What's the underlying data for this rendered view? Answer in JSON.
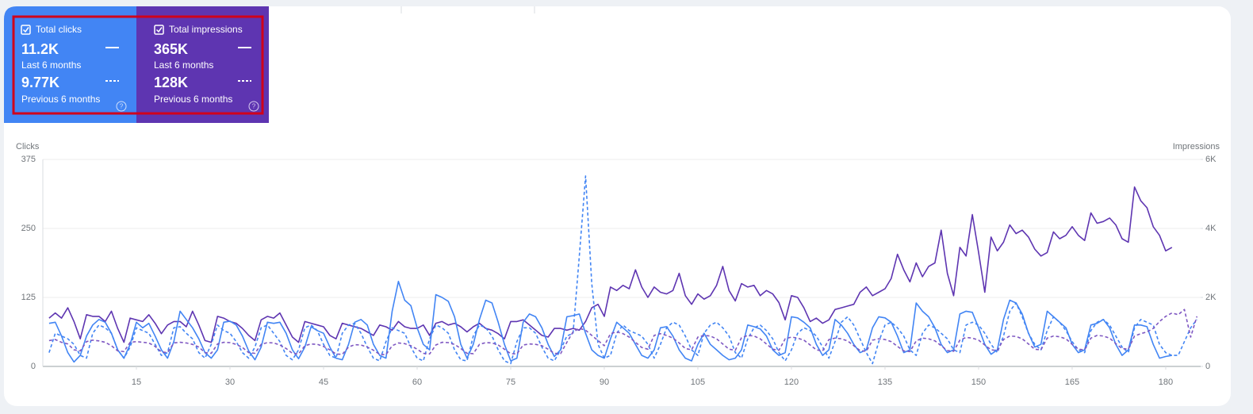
{
  "cards": [
    {
      "label": "Total clicks",
      "current": "11.2K",
      "current_period": "Last 6 months",
      "previous": "9.77K",
      "previous_period": "Previous 6 months"
    },
    {
      "label": "Total impressions",
      "current": "365K",
      "current_period": "Last 6 months",
      "previous": "128K",
      "previous_period": "Previous 6 months"
    }
  ],
  "chart_data": {
    "type": "line",
    "y_label": "Clicks",
    "y2_label": "Impressions",
    "x": [
      1,
      2,
      3,
      4,
      5,
      6,
      7,
      8,
      9,
      10,
      11,
      12,
      13,
      14,
      15,
      16,
      17,
      18,
      19,
      20,
      21,
      22,
      23,
      24,
      25,
      26,
      27,
      28,
      29,
      30,
      31,
      32,
      33,
      34,
      35,
      36,
      37,
      38,
      39,
      40,
      41,
      42,
      43,
      44,
      45,
      46,
      47,
      48,
      49,
      50,
      51,
      52,
      53,
      54,
      55,
      56,
      57,
      58,
      59,
      60,
      61,
      62,
      63,
      64,
      65,
      66,
      67,
      68,
      69,
      70,
      71,
      72,
      73,
      74,
      75,
      76,
      77,
      78,
      79,
      80,
      81,
      82,
      83,
      84,
      85,
      86,
      87,
      88,
      89,
      90,
      91,
      92,
      93,
      94,
      95,
      96,
      97,
      98,
      99,
      100,
      101,
      102,
      103,
      104,
      105,
      106,
      107,
      108,
      109,
      110,
      111,
      112,
      113,
      114,
      115,
      116,
      117,
      118,
      119,
      120,
      121,
      122,
      123,
      124,
      125,
      126,
      127,
      128,
      129,
      130,
      131,
      132,
      133,
      134,
      135,
      136,
      137,
      138,
      139,
      140,
      141,
      142,
      143,
      144,
      145,
      146,
      147,
      148,
      149,
      150,
      151,
      152,
      153,
      154,
      155,
      156,
      157,
      158,
      159,
      160,
      161,
      162,
      163,
      164,
      165,
      166,
      167,
      168,
      169,
      170,
      171,
      172,
      173,
      174,
      175,
      176,
      177,
      178,
      179,
      180,
      181,
      182,
      183,
      184,
      185
    ],
    "xlim": [
      0,
      185.6
    ],
    "xticks": [
      15,
      30,
      45,
      60,
      75,
      90,
      105,
      120,
      135,
      150,
      165,
      180
    ],
    "ylim": [
      0,
      375
    ],
    "yticks": [
      0,
      125,
      250,
      375
    ],
    "y2lim": [
      0,
      6000
    ],
    "y2ticks": [
      0,
      {
        "value": 2000,
        "label": "2K"
      },
      {
        "value": 4000,
        "label": "4K"
      },
      {
        "value": 6000,
        "label": "6K"
      }
    ],
    "grid": true,
    "series": [
      {
        "color": "#5e35b1",
        "dashed": false,
        "axis": "y2",
        "values": [
          1400,
          1550,
          1400,
          1700,
          1300,
          800,
          1500,
          1450,
          1450,
          1300,
          1600,
          1100,
          700,
          1400,
          1350,
          1300,
          1500,
          1250,
          950,
          1200,
          1300,
          1300,
          1150,
          1600,
          1200,
          750,
          700,
          1450,
          1400,
          1300,
          1250,
          1100,
          900,
          750,
          1350,
          1450,
          1400,
          1550,
          1200,
          850,
          700,
          1300,
          1250,
          1200,
          1150,
          900,
          800,
          1250,
          1200,
          1150,
          1100,
          1000,
          900,
          1200,
          1150,
          1050,
          1300,
          1150,
          1100,
          1100,
          1200,
          900,
          1250,
          1300,
          1200,
          1250,
          1150,
          1000,
          1150,
          1250,
          1100,
          1050,
          950,
          800,
          1300,
          1300,
          1350,
          1200,
          1050,
          900,
          850,
          1100,
          1100,
          1050,
          1100,
          1050,
          1300,
          1700,
          1800,
          1450,
          2300,
          2200,
          2350,
          2250,
          2800,
          2300,
          2000,
          2300,
          2150,
          2100,
          2200,
          2700,
          2050,
          1800,
          2100,
          1950,
          2050,
          2350,
          2900,
          2200,
          1900,
          2400,
          2300,
          2350,
          2050,
          2200,
          2100,
          1850,
          1350,
          2050,
          2000,
          1700,
          1300,
          1400,
          1250,
          1350,
          1650,
          1700,
          1750,
          1800,
          2150,
          2300,
          2050,
          2150,
          2250,
          2550,
          3250,
          2800,
          2450,
          3000,
          2600,
          2900,
          3000,
          3950,
          2700,
          2050,
          3450,
          3200,
          4400,
          3300,
          2150,
          3750,
          3350,
          3600,
          4100,
          3850,
          3950,
          3750,
          3400,
          3200,
          3300,
          3900,
          3700,
          3800,
          4050,
          3800,
          3650,
          4450,
          4150,
          4200,
          4300,
          4100,
          3700,
          3600,
          5200,
          4800,
          4600,
          4050,
          3800,
          3350,
          3450,
          null,
          null,
          null,
          null
        ]
      },
      {
        "color": "#4285f4",
        "dashed": false,
        "axis": "y",
        "values": [
          78,
          80,
          55,
          25,
          8,
          20,
          55,
          75,
          85,
          80,
          60,
          30,
          15,
          40,
          80,
          70,
          78,
          55,
          30,
          15,
          45,
          100,
          85,
          70,
          50,
          25,
          15,
          30,
          80,
          82,
          75,
          55,
          28,
          12,
          35,
          80,
          78,
          80,
          60,
          30,
          14,
          35,
          72,
          65,
          60,
          35,
          15,
          12,
          40,
          80,
          85,
          75,
          40,
          20,
          15,
          100,
          154,
          120,
          110,
          70,
          40,
          30,
          130,
          125,
          118,
          90,
          40,
          15,
          40,
          85,
          120,
          115,
          80,
          40,
          10,
          15,
          80,
          95,
          90,
          70,
          40,
          18,
          30,
          90,
          92,
          95,
          60,
          30,
          20,
          15,
          50,
          80,
          70,
          60,
          40,
          20,
          15,
          30,
          70,
          72,
          55,
          30,
          15,
          10,
          40,
          60,
          40,
          30,
          20,
          12,
          15,
          30,
          75,
          72,
          68,
          55,
          30,
          20,
          25,
          90,
          88,
          80,
          70,
          40,
          20,
          30,
          85,
          75,
          60,
          40,
          25,
          30,
          70,
          90,
          88,
          80,
          55,
          25,
          30,
          115,
          100,
          90,
          70,
          40,
          25,
          30,
          95,
          100,
          98,
          70,
          40,
          22,
          30,
          85,
          120,
          115,
          95,
          60,
          35,
          40,
          100,
          90,
          80,
          70,
          40,
          25,
          30,
          75,
          78,
          85,
          70,
          40,
          20,
          30,
          75,
          75,
          72,
          40,
          15,
          18,
          20,
          null,
          null,
          null,
          null
        ]
      },
      {
        "color": "#4285f4",
        "dashed": true,
        "axis": "y",
        "values": [
          25,
          60,
          55,
          50,
          40,
          20,
          15,
          60,
          75,
          70,
          60,
          30,
          15,
          35,
          70,
          65,
          60,
          40,
          20,
          25,
          70,
          72,
          60,
          50,
          25,
          15,
          40,
          75,
          65,
          60,
          45,
          25,
          15,
          35,
          70,
          75,
          60,
          45,
          20,
          12,
          30,
          70,
          75,
          65,
          40,
          20,
          15,
          60,
          75,
          78,
          60,
          35,
          15,
          10,
          45,
          70,
          65,
          60,
          35,
          15,
          10,
          50,
          75,
          70,
          60,
          30,
          12,
          10,
          55,
          75,
          70,
          55,
          30,
          10,
          5,
          45,
          70,
          70,
          60,
          35,
          15,
          10,
          30,
          55,
          60,
          200,
          345,
          150,
          40,
          15,
          20,
          60,
          75,
          65,
          60,
          55,
          40,
          15,
          40,
          70,
          80,
          75,
          55,
          30,
          20,
          60,
          75,
          80,
          70,
          55,
          25,
          15,
          50,
          70,
          75,
          65,
          50,
          25,
          10,
          30,
          60,
          70,
          65,
          55,
          35,
          15,
          45,
          80,
          90,
          75,
          50,
          25,
          5,
          45,
          75,
          80,
          70,
          55,
          30,
          20,
          60,
          75,
          70,
          60,
          50,
          30,
          25,
          75,
          80,
          75,
          60,
          40,
          25,
          55,
          100,
          115,
          90,
          60,
          40,
          30,
          65,
          90,
          80,
          65,
          45,
          30,
          25,
          65,
          80,
          85,
          75,
          55,
          35,
          25,
          70,
          85,
          80,
          75,
          40,
          25,
          20,
          20,
          45,
          70,
          85
        ]
      },
      {
        "color": "#7e57c2",
        "dashed": true,
        "axis": "y2",
        "values": [
          750,
          780,
          700,
          650,
          480,
          450,
          720,
          760,
          740,
          700,
          600,
          450,
          430,
          700,
          720,
          700,
          680,
          580,
          420,
          400,
          680,
          700,
          680,
          640,
          560,
          400,
          380,
          650,
          700,
          690,
          640,
          550,
          400,
          380,
          640,
          690,
          680,
          620,
          520,
          380,
          360,
          600,
          650,
          640,
          580,
          480,
          360,
          350,
          560,
          630,
          620,
          560,
          470,
          350,
          340,
          600,
          680,
          660,
          600,
          500,
          380,
          360,
          620,
          700,
          690,
          640,
          520,
          380,
          370,
          640,
          690,
          680,
          620,
          500,
          370,
          360,
          620,
          650,
          640,
          600,
          500,
          380,
          370,
          700,
          1000,
          1100,
          1050,
          900,
          750,
          600,
          950,
          1000,
          950,
          850,
          700,
          550,
          500,
          900,
          950,
          900,
          820,
          680,
          520,
          480,
          850,
          900,
          880,
          800,
          650,
          500,
          470,
          830,
          900,
          880,
          800,
          650,
          500,
          470,
          800,
          850,
          820,
          760,
          620,
          480,
          450,
          780,
          820,
          800,
          740,
          600,
          460,
          440,
          760,
          800,
          780,
          720,
          580,
          450,
          430,
          740,
          820,
          800,
          740,
          600,
          460,
          440,
          760,
          840,
          820,
          760,
          620,
          480,
          460,
          780,
          880,
          870,
          800,
          650,
          500,
          480,
          820,
          880,
          860,
          800,
          640,
          500,
          480,
          820,
          900,
          880,
          820,
          660,
          520,
          500,
          880,
          950,
          1000,
          1100,
          1300,
          1450,
          1550,
          1500,
          1650,
          850,
          1450
        ]
      }
    ]
  }
}
